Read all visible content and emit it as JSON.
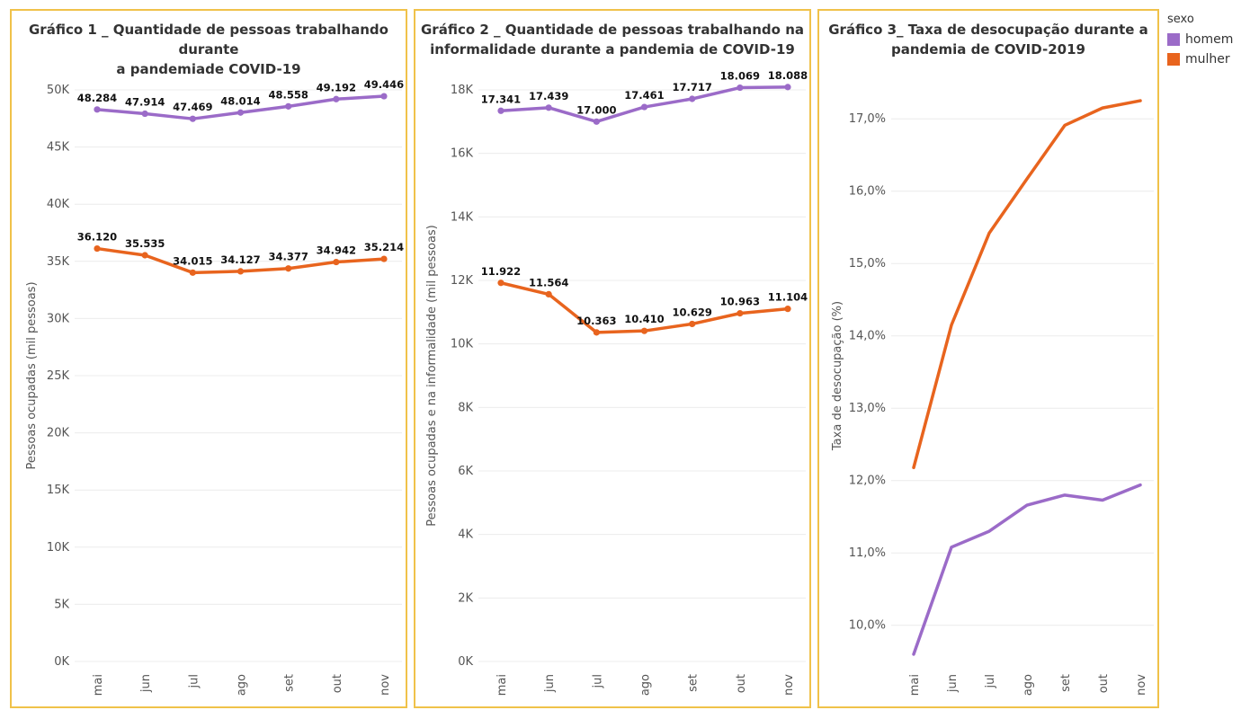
{
  "colors": {
    "homem": "#9b6bc8",
    "mulher": "#e8641e",
    "panel_border": "#f0c24a",
    "grid": "#ececec"
  },
  "legend": {
    "title": "sexo",
    "items": [
      {
        "label": "homem",
        "color": "#9b6bc8"
      },
      {
        "label": "mulher",
        "color": "#e8641e"
      }
    ]
  },
  "chart_data": [
    {
      "type": "line",
      "title_lines": [
        "Gráfico 1 _ Quantidade de pessoas trabalhando durante",
        "a pandemiade COVID-19"
      ],
      "categories": [
        "mai",
        "jun",
        "jul",
        "ago",
        "set",
        "out",
        "nov"
      ],
      "ylabel": "Pessoas ocupadas (mil pessoas)",
      "ylim": [
        0,
        50000
      ],
      "yticks": [
        0,
        5000,
        10000,
        15000,
        20000,
        25000,
        30000,
        35000,
        40000,
        45000,
        50000
      ],
      "ytick_labels": [
        "0K",
        "5K",
        "10K",
        "15K",
        "20K",
        "25K",
        "30K",
        "35K",
        "40K",
        "45K",
        "50K"
      ],
      "grid": true,
      "markers": true,
      "series": [
        {
          "name": "homem",
          "values": [
            48284,
            47914,
            47469,
            48014,
            48558,
            49192,
            49446
          ],
          "labels": [
            "48.284",
            "47.914",
            "47.469",
            "48.014",
            "48.558",
            "49.192",
            "49.446"
          ]
        },
        {
          "name": "mulher",
          "values": [
            36120,
            35535,
            34015,
            34127,
            34377,
            34942,
            35214
          ],
          "labels": [
            "36.120",
            "35.535",
            "34.015",
            "34.127",
            "34.377",
            "34.942",
            "35.214"
          ]
        }
      ]
    },
    {
      "type": "line",
      "title_lines": [
        "Gráfico 2 _ Quantidade de pessoas trabalhando na",
        "informalidade durante a pandemia de COVID-19"
      ],
      "categories": [
        "mai",
        "jun",
        "jul",
        "ago",
        "set",
        "out",
        "nov"
      ],
      "ylabel": "Pessoas ocupadas e na informalidade (mil pessoas)",
      "ylim": [
        0,
        18000
      ],
      "yticks": [
        0,
        2000,
        4000,
        6000,
        8000,
        10000,
        12000,
        14000,
        16000,
        18000
      ],
      "ytick_labels": [
        "0K",
        "2K",
        "4K",
        "6K",
        "8K",
        "10K",
        "12K",
        "14K",
        "16K",
        "18K"
      ],
      "grid": true,
      "markers": true,
      "series": [
        {
          "name": "homem",
          "values": [
            17341,
            17439,
            17000,
            17461,
            17717,
            18069,
            18088
          ],
          "labels": [
            "17.341",
            "17.439",
            "17.000",
            "17.461",
            "17.717",
            "18.069",
            "18.088"
          ]
        },
        {
          "name": "mulher",
          "values": [
            11922,
            11564,
            10363,
            10410,
            10629,
            10963,
            11104
          ],
          "labels": [
            "11.922",
            "11.564",
            "10.363",
            "10.410",
            "10.629",
            "10.963",
            "11.104"
          ]
        }
      ]
    },
    {
      "type": "line",
      "title_lines": [
        "Gráfico 3_ Taxa de desocupação durante a",
        "pandemia de COVID-2019"
      ],
      "categories": [
        "mai",
        "jun",
        "jul",
        "ago",
        "set",
        "out",
        "nov"
      ],
      "ylabel": "Taxa de desocupação (%)",
      "ylim": [
        9.5,
        17.4
      ],
      "yticks": [
        10,
        11,
        12,
        13,
        14,
        15,
        16,
        17
      ],
      "ytick_labels": [
        "10,0%",
        "11,0%",
        "12,0%",
        "13,0%",
        "14,0%",
        "15,0%",
        "16,0%",
        "17,0%"
      ],
      "grid": true,
      "markers": false,
      "series": [
        {
          "name": "homem",
          "values": [
            9.6,
            11.08,
            11.3,
            11.66,
            11.8,
            11.73,
            11.94
          ]
        },
        {
          "name": "mulher",
          "values": [
            12.18,
            14.15,
            15.42,
            16.17,
            16.91,
            17.15,
            17.25
          ]
        }
      ]
    }
  ]
}
